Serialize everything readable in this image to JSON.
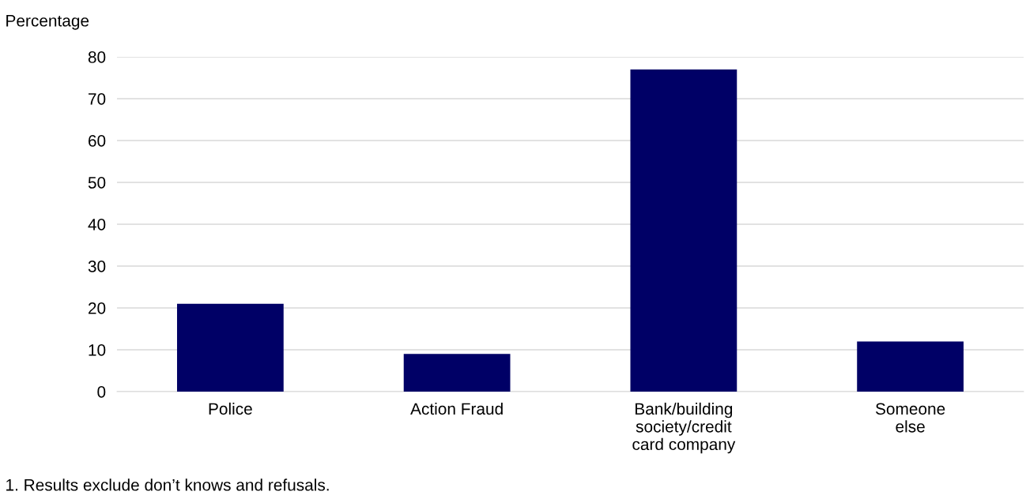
{
  "chart_data": {
    "type": "bar",
    "ylabel": "Percentage",
    "categories": [
      "Police",
      "Action Fraud",
      "Bank/building\nsociety/credit\ncard company",
      "Someone\nelse"
    ],
    "values": [
      21,
      9,
      77,
      12
    ],
    "color": "#000066",
    "ylim": [
      0,
      80
    ],
    "yticks": [
      0,
      10,
      20,
      30,
      40,
      50,
      60,
      70,
      80
    ],
    "grid": "y",
    "annotations": [
      "1. Results exclude don’t knows and refusals."
    ]
  }
}
